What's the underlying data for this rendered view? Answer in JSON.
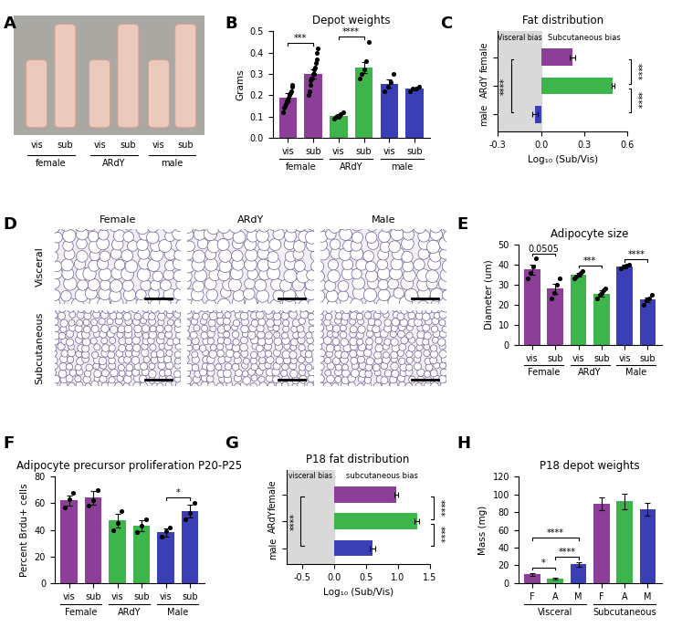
{
  "panel_labels": [
    "A",
    "B",
    "C",
    "D",
    "E",
    "F",
    "G",
    "H"
  ],
  "photo": {
    "labels": [
      "vis",
      "sub",
      "vis",
      "sub",
      "vis",
      "sub"
    ],
    "groups": [
      "female",
      "ARdY",
      "male"
    ]
  },
  "micrographs": {
    "columns": [
      "Female",
      "ARdY",
      "Male"
    ],
    "rows": [
      "Visceral",
      "Subcutaneous"
    ]
  },
  "chart_data": [
    {
      "type": "bar",
      "title": "Depot weights",
      "ylabel": "Grams",
      "categories": [
        "vis",
        "sub",
        "vis",
        "sub",
        "vis",
        "sub"
      ],
      "groups": [
        "female",
        "ARdY",
        "male"
      ],
      "values": [
        0.19,
        0.3,
        0.105,
        0.33,
        0.255,
        0.23
      ],
      "errors": [
        0.02,
        0.02,
        0.008,
        0.025,
        0.02,
        0.008
      ],
      "points": [
        [
          0.12,
          0.14,
          0.15,
          0.16,
          0.17,
          0.17,
          0.18,
          0.19,
          0.2,
          0.21,
          0.22,
          0.24,
          0.25
        ],
        [
          0.2,
          0.22,
          0.25,
          0.27,
          0.28,
          0.28,
          0.3,
          0.3,
          0.32,
          0.33,
          0.35,
          0.37,
          0.4,
          0.42
        ],
        [
          0.09,
          0.1,
          0.1,
          0.11,
          0.12
        ],
        [
          0.28,
          0.3,
          0.32,
          0.36,
          0.45
        ],
        [
          0.22,
          0.24,
          0.26,
          0.3
        ],
        [
          0.22,
          0.23,
          0.23,
          0.24
        ]
      ],
      "colors": [
        "#8c3f96",
        "#8c3f96",
        "#3db54a",
        "#3db54a",
        "#3b3fb6",
        "#3b3fb6"
      ],
      "ylim": [
        0,
        0.5
      ],
      "yticks": [
        0.0,
        0.1,
        0.2,
        0.3,
        0.4,
        0.5
      ],
      "annotations": [
        {
          "text": "***",
          "between": [
            0,
            1
          ]
        },
        {
          "text": "****",
          "between": [
            2,
            3
          ]
        }
      ]
    },
    {
      "type": "bar",
      "orientation": "horizontal",
      "title": "Fat distribution",
      "xlabel": "Log₁₀ (Sub/Vis)",
      "categories": [
        "female",
        "ARdY",
        "male"
      ],
      "values": [
        0.22,
        0.5,
        -0.04
      ],
      "errors": [
        0.02,
        0.01,
        0.02
      ],
      "colors": [
        "#8c3f96",
        "#3db54a",
        "#3b3fb6"
      ],
      "xlim": [
        -0.3,
        0.6
      ],
      "xticks": [
        -0.3,
        0.0,
        0.3,
        0.6
      ],
      "shade": [
        -0.3,
        0.0
      ],
      "bias_labels": [
        "Visceral bias",
        "Subcutaneous bias"
      ],
      "annotations": [
        {
          "text": "****",
          "between": [
            0,
            1
          ],
          "side": "right"
        },
        {
          "text": "****",
          "between": [
            1,
            2
          ],
          "side": "right"
        },
        {
          "text": "****",
          "between": [
            0,
            2
          ],
          "side": "left"
        }
      ]
    },
    {
      "type": "bar",
      "title": "Adipocyte size",
      "ylabel": "Diameter (um)",
      "categories": [
        "vis",
        "sub",
        "vis",
        "sub",
        "vis",
        "sub"
      ],
      "groups": [
        "Female",
        "ARdY",
        "Male"
      ],
      "values": [
        37.5,
        28,
        35,
        25.5,
        39,
        22.5
      ],
      "errors": [
        2.5,
        2.5,
        1,
        1.5,
        0.8,
        1.2
      ],
      "points": [
        [
          33,
          36,
          39,
          43
        ],
        [
          23,
          26,
          30,
          33
        ],
        [
          33,
          34,
          35,
          36,
          37
        ],
        [
          23,
          25,
          26,
          27,
          28
        ],
        [
          38,
          39,
          39.5,
          40
        ],
        [
          20,
          22,
          23,
          25
        ]
      ],
      "colors": [
        "#8c3f96",
        "#8c3f96",
        "#3db54a",
        "#3db54a",
        "#3b3fb6",
        "#3b3fb6"
      ],
      "ylim": [
        0,
        50
      ],
      "yticks": [
        0,
        10,
        20,
        30,
        40,
        50
      ],
      "annotations": [
        {
          "text": "0.0505",
          "between": [
            0,
            1
          ]
        },
        {
          "text": "***",
          "between": [
            2,
            3
          ]
        },
        {
          "text": "****",
          "between": [
            4,
            5
          ]
        }
      ]
    },
    {
      "type": "bar",
      "title": "Adipocyte precursor proliferation P20-P25",
      "ylabel": "Percent Brdu+ cells",
      "categories": [
        "vis",
        "sub",
        "vis",
        "sub",
        "vis",
        "sub"
      ],
      "groups": [
        "Female",
        "ARdY",
        "Male"
      ],
      "values": [
        62,
        64,
        47,
        43,
        38,
        54
      ],
      "errors": [
        4,
        5,
        5,
        4,
        3,
        5
      ],
      "points": [
        [
          57,
          63,
          68
        ],
        [
          58,
          62,
          70
        ],
        [
          40,
          45,
          54
        ],
        [
          38,
          43,
          48
        ],
        [
          35,
          39,
          42
        ],
        [
          48,
          53,
          60
        ]
      ],
      "colors": [
        "#8c3f96",
        "#8c3f96",
        "#3db54a",
        "#3db54a",
        "#3b3fb6",
        "#3b3fb6"
      ],
      "ylim": [
        0,
        80
      ],
      "yticks": [
        0,
        20,
        40,
        60,
        80
      ],
      "annotations": [
        {
          "text": "*",
          "between": [
            4,
            5
          ]
        }
      ]
    },
    {
      "type": "bar",
      "orientation": "horizontal",
      "title": "P18 fat distribution",
      "xlabel": "Log₁₀ (Sub/Vis)",
      "categories": [
        "female",
        "ARdY",
        "male"
      ],
      "values": [
        0.97,
        1.3,
        0.6
      ],
      "errors": [
        0.03,
        0.04,
        0.04
      ],
      "colors": [
        "#8c3f96",
        "#3db54a",
        "#3b3fb6"
      ],
      "xlim": [
        -0.75,
        1.5
      ],
      "xticks": [
        -0.5,
        0.0,
        0.5,
        1.0,
        1.5
      ],
      "shade": [
        -0.75,
        0.0
      ],
      "bias_labels": [
        "visceral bias",
        "subcutaneous bias"
      ],
      "annotations": [
        {
          "text": "****",
          "between": [
            0,
            1
          ],
          "side": "right"
        },
        {
          "text": "****",
          "between": [
            1,
            2
          ],
          "side": "right"
        },
        {
          "text": "****",
          "between": [
            0,
            2
          ],
          "side": "left"
        }
      ]
    },
    {
      "type": "bar",
      "title": "P18 depot weights",
      "ylabel": "Mass (mg)",
      "categories": [
        "F",
        "A",
        "M",
        "F",
        "A",
        "M"
      ],
      "groups": [
        "Visceral",
        "Subcutaneous"
      ],
      "values": [
        10,
        5,
        21,
        89,
        92,
        83
      ],
      "errors": [
        1.5,
        1,
        2.5,
        7,
        9,
        7
      ],
      "colors": [
        "#8c3f96",
        "#3db54a",
        "#3b3fb6",
        "#8c3f96",
        "#3db54a",
        "#3b3fb6"
      ],
      "ylim": [
        0,
        120
      ],
      "yticks": [
        0,
        20,
        40,
        60,
        80,
        100,
        120
      ],
      "annotations": [
        {
          "text": "*",
          "between": [
            0,
            1
          ]
        },
        {
          "text": "****",
          "between": [
            1,
            2
          ]
        },
        {
          "text": "****",
          "between": [
            0,
            2
          ]
        }
      ]
    }
  ]
}
